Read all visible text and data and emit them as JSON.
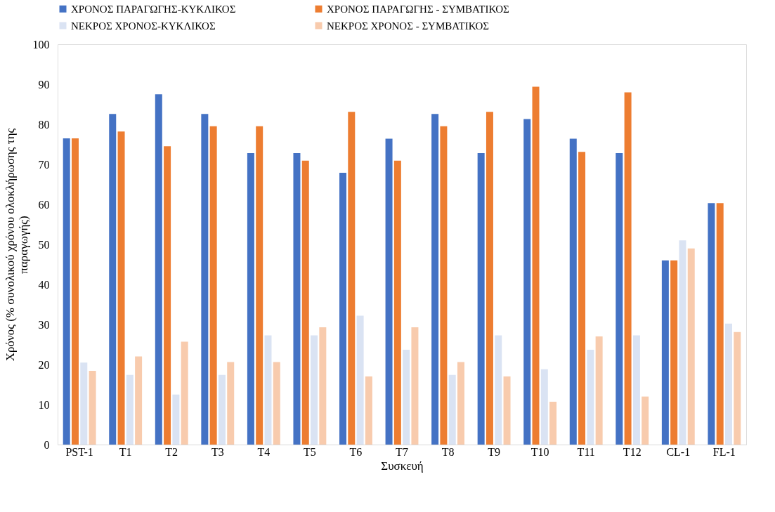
{
  "chart_data": {
    "type": "bar",
    "xlabel": "Συσκευή",
    "ylabel": "Χρόνος (% συνολικού χρόνου ολοκλήρωσης της παραγωγής)",
    "categories": [
      "PST-1",
      "T1",
      "T2",
      "T3",
      "T4",
      "T5",
      "T6",
      "T7",
      "T8",
      "T9",
      "T10",
      "T11",
      "T12",
      "CL-1",
      "FL-1"
    ],
    "series": [
      {
        "name": "ΧΡΟΝΟΣ ΠΑΡΑΓΩΓΗΣ-ΚΥΚΛΙΚΟΣ",
        "color": "#4472c4",
        "values": [
          76.5,
          82.6,
          87.5,
          82.6,
          72.8,
          72.8,
          67.9,
          76.4,
          82.6,
          72.8,
          81.3,
          76.4,
          72.8,
          46.0,
          60.3
        ]
      },
      {
        "name": "ΧΡΟΝΟΣ ΠΑΡΑΓΩΓΗΣ - ΣΥΜΒΑΤΙΚΟΣ",
        "color": "#ed7d31",
        "values": [
          76.5,
          78.2,
          74.5,
          79.5,
          79.5,
          70.9,
          83.1,
          70.9,
          79.5,
          83.1,
          89.4,
          73.1,
          88.0,
          46.0,
          60.3
        ]
      },
      {
        "name": "ΝΕΚΡΟΣ ΧΡΟΝΟΣ-ΚΥΚΛΙΚΟΣ",
        "color": "#dae3f3",
        "values": [
          20.5,
          17.4,
          12.5,
          17.4,
          27.3,
          27.3,
          32.2,
          23.7,
          17.4,
          27.3,
          18.8,
          23.7,
          27.3,
          51.0,
          30.2
        ]
      },
      {
        "name": "ΝΕΚΡΟΣ ΧΡΟΝΟΣ - ΣΥΜΒΑΤΙΚΟΣ",
        "color": "#f8cbad",
        "values": [
          18.4,
          22.0,
          25.7,
          20.6,
          20.6,
          29.3,
          17.0,
          29.3,
          20.6,
          17.0,
          10.7,
          27.0,
          12.0,
          49.0,
          28.1
        ]
      }
    ],
    "ylim": [
      0,
      100
    ],
    "yticks": [
      0,
      10,
      20,
      30,
      40,
      50,
      60,
      70,
      80,
      90,
      100
    ],
    "grid": false,
    "legend": "top"
  }
}
